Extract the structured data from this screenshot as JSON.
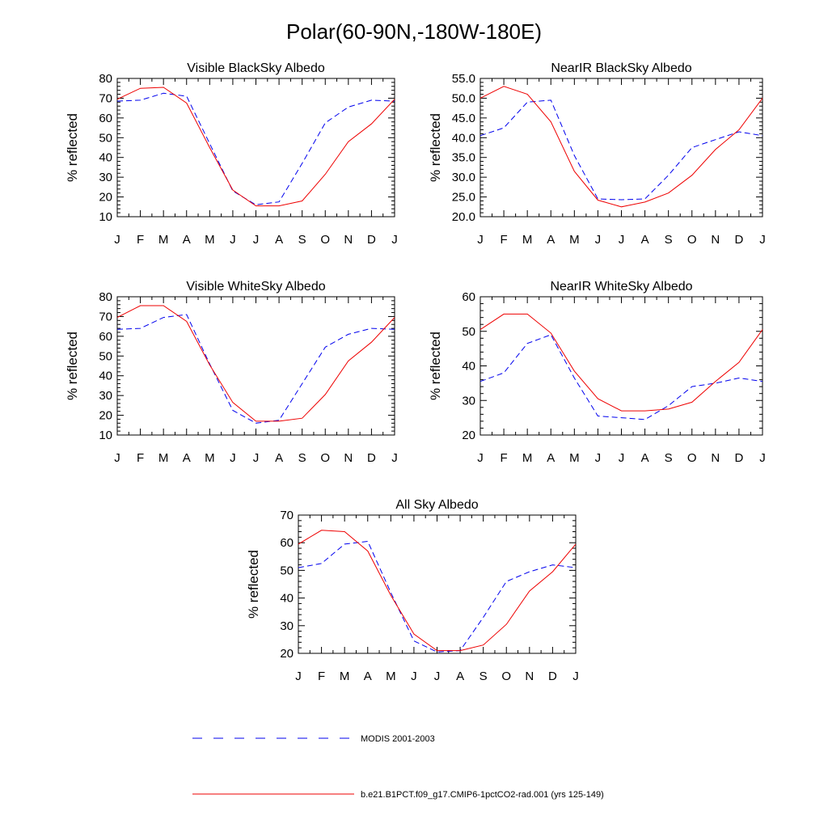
{
  "title": "Polar(60-90N,-180W-180E)",
  "colors": {
    "obs": "#0000ee",
    "model": "#ee0000",
    "axis": "#000000"
  },
  "legend": {
    "obs_label": "MODIS 2001-2003",
    "model_label": "b.e21.B1PCT.f09_g17.CMIP6-1pctCO2-rad.001 (yrs 125-149)"
  },
  "chart_data": [
    {
      "type": "line",
      "title": "Visible BlackSky Albedo",
      "ylabel": "% reflected",
      "categories": [
        "J",
        "F",
        "M",
        "A",
        "M",
        "J",
        "J",
        "A",
        "S",
        "O",
        "N",
        "D",
        "J"
      ],
      "ylim": [
        10,
        80
      ],
      "yticks": [
        "10",
        "20",
        "30",
        "40",
        "50",
        "60",
        "70",
        "80"
      ],
      "series": [
        {
          "name": "MODIS 2001-2003",
          "style": "dashed",
          "values": [
            68.5,
            69,
            72.5,
            71,
            47,
            23,
            16,
            17.5,
            37,
            57.5,
            65.5,
            69,
            68.5
          ]
        },
        {
          "name": "b.e21.B1PCT.f09_g17.CMIP6-1pctCO2-rad.001 (yrs 125-149)",
          "style": "solid",
          "values": [
            69.5,
            75,
            75.5,
            67.5,
            45,
            23.5,
            15.5,
            15.5,
            18,
            31.5,
            48,
            57,
            69.5
          ]
        }
      ]
    },
    {
      "type": "line",
      "title": "NearIR BlackSky Albedo",
      "ylabel": "% reflected",
      "categories": [
        "J",
        "F",
        "M",
        "A",
        "M",
        "J",
        "J",
        "A",
        "S",
        "O",
        "N",
        "D",
        "J"
      ],
      "ylim": [
        20,
        55
      ],
      "yticks": [
        "20.0",
        "25.0",
        "30.0",
        "35.0",
        "40.0",
        "45.0",
        "50.0",
        "55.0"
      ],
      "series": [
        {
          "name": "MODIS 2001-2003",
          "style": "dashed",
          "values": [
            40.5,
            42.5,
            49,
            49.5,
            35.5,
            24.5,
            24.3,
            24.5,
            30.5,
            37.5,
            39.5,
            41.5,
            40.5
          ]
        },
        {
          "name": "b.e21.B1PCT.f09_g17.CMIP6-1pctCO2-rad.001 (yrs 125-149)",
          "style": "solid",
          "values": [
            50,
            53,
            51,
            44,
            31.5,
            24.2,
            22.5,
            23.7,
            26,
            30.5,
            37,
            42,
            50
          ]
        }
      ]
    },
    {
      "type": "line",
      "title": "Visible WhiteSky Albedo",
      "ylabel": "% reflected",
      "categories": [
        "J",
        "F",
        "M",
        "A",
        "M",
        "J",
        "J",
        "A",
        "S",
        "O",
        "N",
        "D",
        "J"
      ],
      "ylim": [
        10,
        80
      ],
      "yticks": [
        "10",
        "20",
        "30",
        "40",
        "50",
        "60",
        "70",
        "80"
      ],
      "series": [
        {
          "name": "MODIS 2001-2003",
          "style": "dashed",
          "values": [
            63.5,
            64,
            69.5,
            71,
            46,
            22.5,
            16,
            17.5,
            36,
            54.5,
            61,
            64,
            63.5
          ]
        },
        {
          "name": "b.e21.B1PCT.f09_g17.CMIP6-1pctCO2-rad.001 (yrs 125-149)",
          "style": "solid",
          "values": [
            69.5,
            75.5,
            75.5,
            67.5,
            45.5,
            26.5,
            17,
            17,
            18.5,
            30.5,
            47.5,
            57,
            69.5
          ]
        }
      ]
    },
    {
      "type": "line",
      "title": "NearIR WhiteSky Albedo",
      "ylabel": "% reflected",
      "categories": [
        "J",
        "F",
        "M",
        "A",
        "M",
        "J",
        "J",
        "A",
        "S",
        "O",
        "N",
        "D",
        "J"
      ],
      "ylim": [
        20,
        60
      ],
      "yticks": [
        "20",
        "30",
        "40",
        "50",
        "60"
      ],
      "series": [
        {
          "name": "MODIS 2001-2003",
          "style": "dashed",
          "values": [
            35.5,
            38,
            46.5,
            49,
            36.5,
            25.5,
            25,
            24.5,
            28.5,
            34,
            35,
            36.5,
            35.5
          ]
        },
        {
          "name": "b.e21.B1PCT.f09_g17.CMIP6-1pctCO2-rad.001 (yrs 125-149)",
          "style": "solid",
          "values": [
            50.5,
            55,
            55,
            49.5,
            38.5,
            30.5,
            27,
            27,
            27.5,
            29.5,
            35.5,
            41,
            50.5
          ]
        }
      ]
    },
    {
      "type": "line",
      "title": "All Sky Albedo",
      "ylabel": "% reflected",
      "categories": [
        "J",
        "F",
        "M",
        "A",
        "M",
        "J",
        "J",
        "A",
        "S",
        "O",
        "N",
        "D",
        "J"
      ],
      "ylim": [
        20,
        70
      ],
      "yticks": [
        "20",
        "30",
        "40",
        "50",
        "60",
        "70"
      ],
      "series": [
        {
          "name": "MODIS 2001-2003",
          "style": "dashed",
          "values": [
            51,
            52.5,
            59.5,
            60.5,
            42,
            24.5,
            20.5,
            21,
            33,
            46,
            49.5,
            52,
            51
          ]
        },
        {
          "name": "b.e21.B1PCT.f09_g17.CMIP6-1pctCO2-rad.001 (yrs 125-149)",
          "style": "solid",
          "values": [
            59.5,
            64.5,
            64,
            57,
            41,
            27,
            21,
            21,
            23,
            30.5,
            42.5,
            49.5,
            59.5
          ]
        }
      ]
    }
  ]
}
